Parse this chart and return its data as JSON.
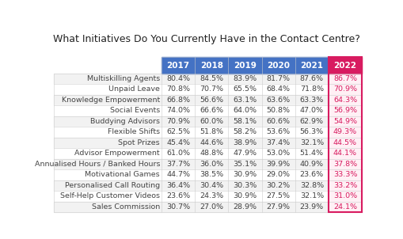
{
  "title": "What Initiatives Do You Currently Have in the Contact Centre?",
  "columns": [
    "2017",
    "2018",
    "2019",
    "2020",
    "2021",
    "2022"
  ],
  "rows": [
    {
      "label": "Multiskilling Agents",
      "values": [
        "80.4%",
        "84.5%",
        "83.9%",
        "81.7%",
        "87.6%",
        "86.7%"
      ]
    },
    {
      "label": "Unpaid Leave",
      "values": [
        "70.8%",
        "70.7%",
        "65.5%",
        "68.4%",
        "71.8%",
        "70.9%"
      ]
    },
    {
      "label": "Knowledge Empowerment",
      "values": [
        "66.8%",
        "56.6%",
        "63.1%",
        "63.6%",
        "63.3%",
        "64.3%"
      ]
    },
    {
      "label": "Social Events",
      "values": [
        "74.0%",
        "66.6%",
        "64.0%",
        "50.8%",
        "47.0%",
        "56.9%"
      ]
    },
    {
      "label": "Buddying Advisors",
      "values": [
        "70.9%",
        "60.0%",
        "58.1%",
        "60.6%",
        "62.9%",
        "54.9%"
      ]
    },
    {
      "label": "Flexible Shifts",
      "values": [
        "62.5%",
        "51.8%",
        "58.2%",
        "53.6%",
        "56.3%",
        "49.3%"
      ]
    },
    {
      "label": "Spot Prizes",
      "values": [
        "45.4%",
        "44.6%",
        "38.9%",
        "37.4%",
        "32.1%",
        "44.5%"
      ]
    },
    {
      "label": "Advisor Empowerment",
      "values": [
        "61.0%",
        "48.8%",
        "47.9%",
        "53.0%",
        "51.4%",
        "44.1%"
      ]
    },
    {
      "label": "Annualised Hours / Banked Hours",
      "values": [
        "37.7%",
        "36.0%",
        "35.1%",
        "39.9%",
        "40.9%",
        "37.8%"
      ]
    },
    {
      "label": "Motivational Games",
      "values": [
        "44.7%",
        "38.5%",
        "30.9%",
        "29.0%",
        "23.6%",
        "33.3%"
      ]
    },
    {
      "label": "Personalised Call Routing",
      "values": [
        "36.4%",
        "30.4%",
        "30.3%",
        "30.2%",
        "32.8%",
        "33.2%"
      ]
    },
    {
      "label": "Self-Help Customer Videos",
      "values": [
        "23.6%",
        "24.3%",
        "30.9%",
        "27.5%",
        "32.1%",
        "31.0%"
      ]
    },
    {
      "label": "Sales Commission",
      "values": [
        "30.7%",
        "27.0%",
        "28.9%",
        "27.9%",
        "23.9%",
        "24.1%"
      ]
    }
  ],
  "header_bg_blue": "#4472C4",
  "header_bg_pink": "#D81B60",
  "header_text_color": "#FFFFFF",
  "row_bg_light": "#F2F2F2",
  "row_bg_white": "#FFFFFF",
  "row_text_color": "#404040",
  "label_text_color": "#444444",
  "pink_col_border": "#D81B60",
  "pink_col_text": "#D81B60",
  "pink_cell_bg": "#FFF0F5",
  "title_fontsize": 9.0,
  "header_fontsize": 7.5,
  "cell_fontsize": 6.8,
  "label_fontsize": 6.8,
  "bg_color": "#FFFFFF",
  "grid_color": "#CCCCCC",
  "grid_lw": 0.4
}
